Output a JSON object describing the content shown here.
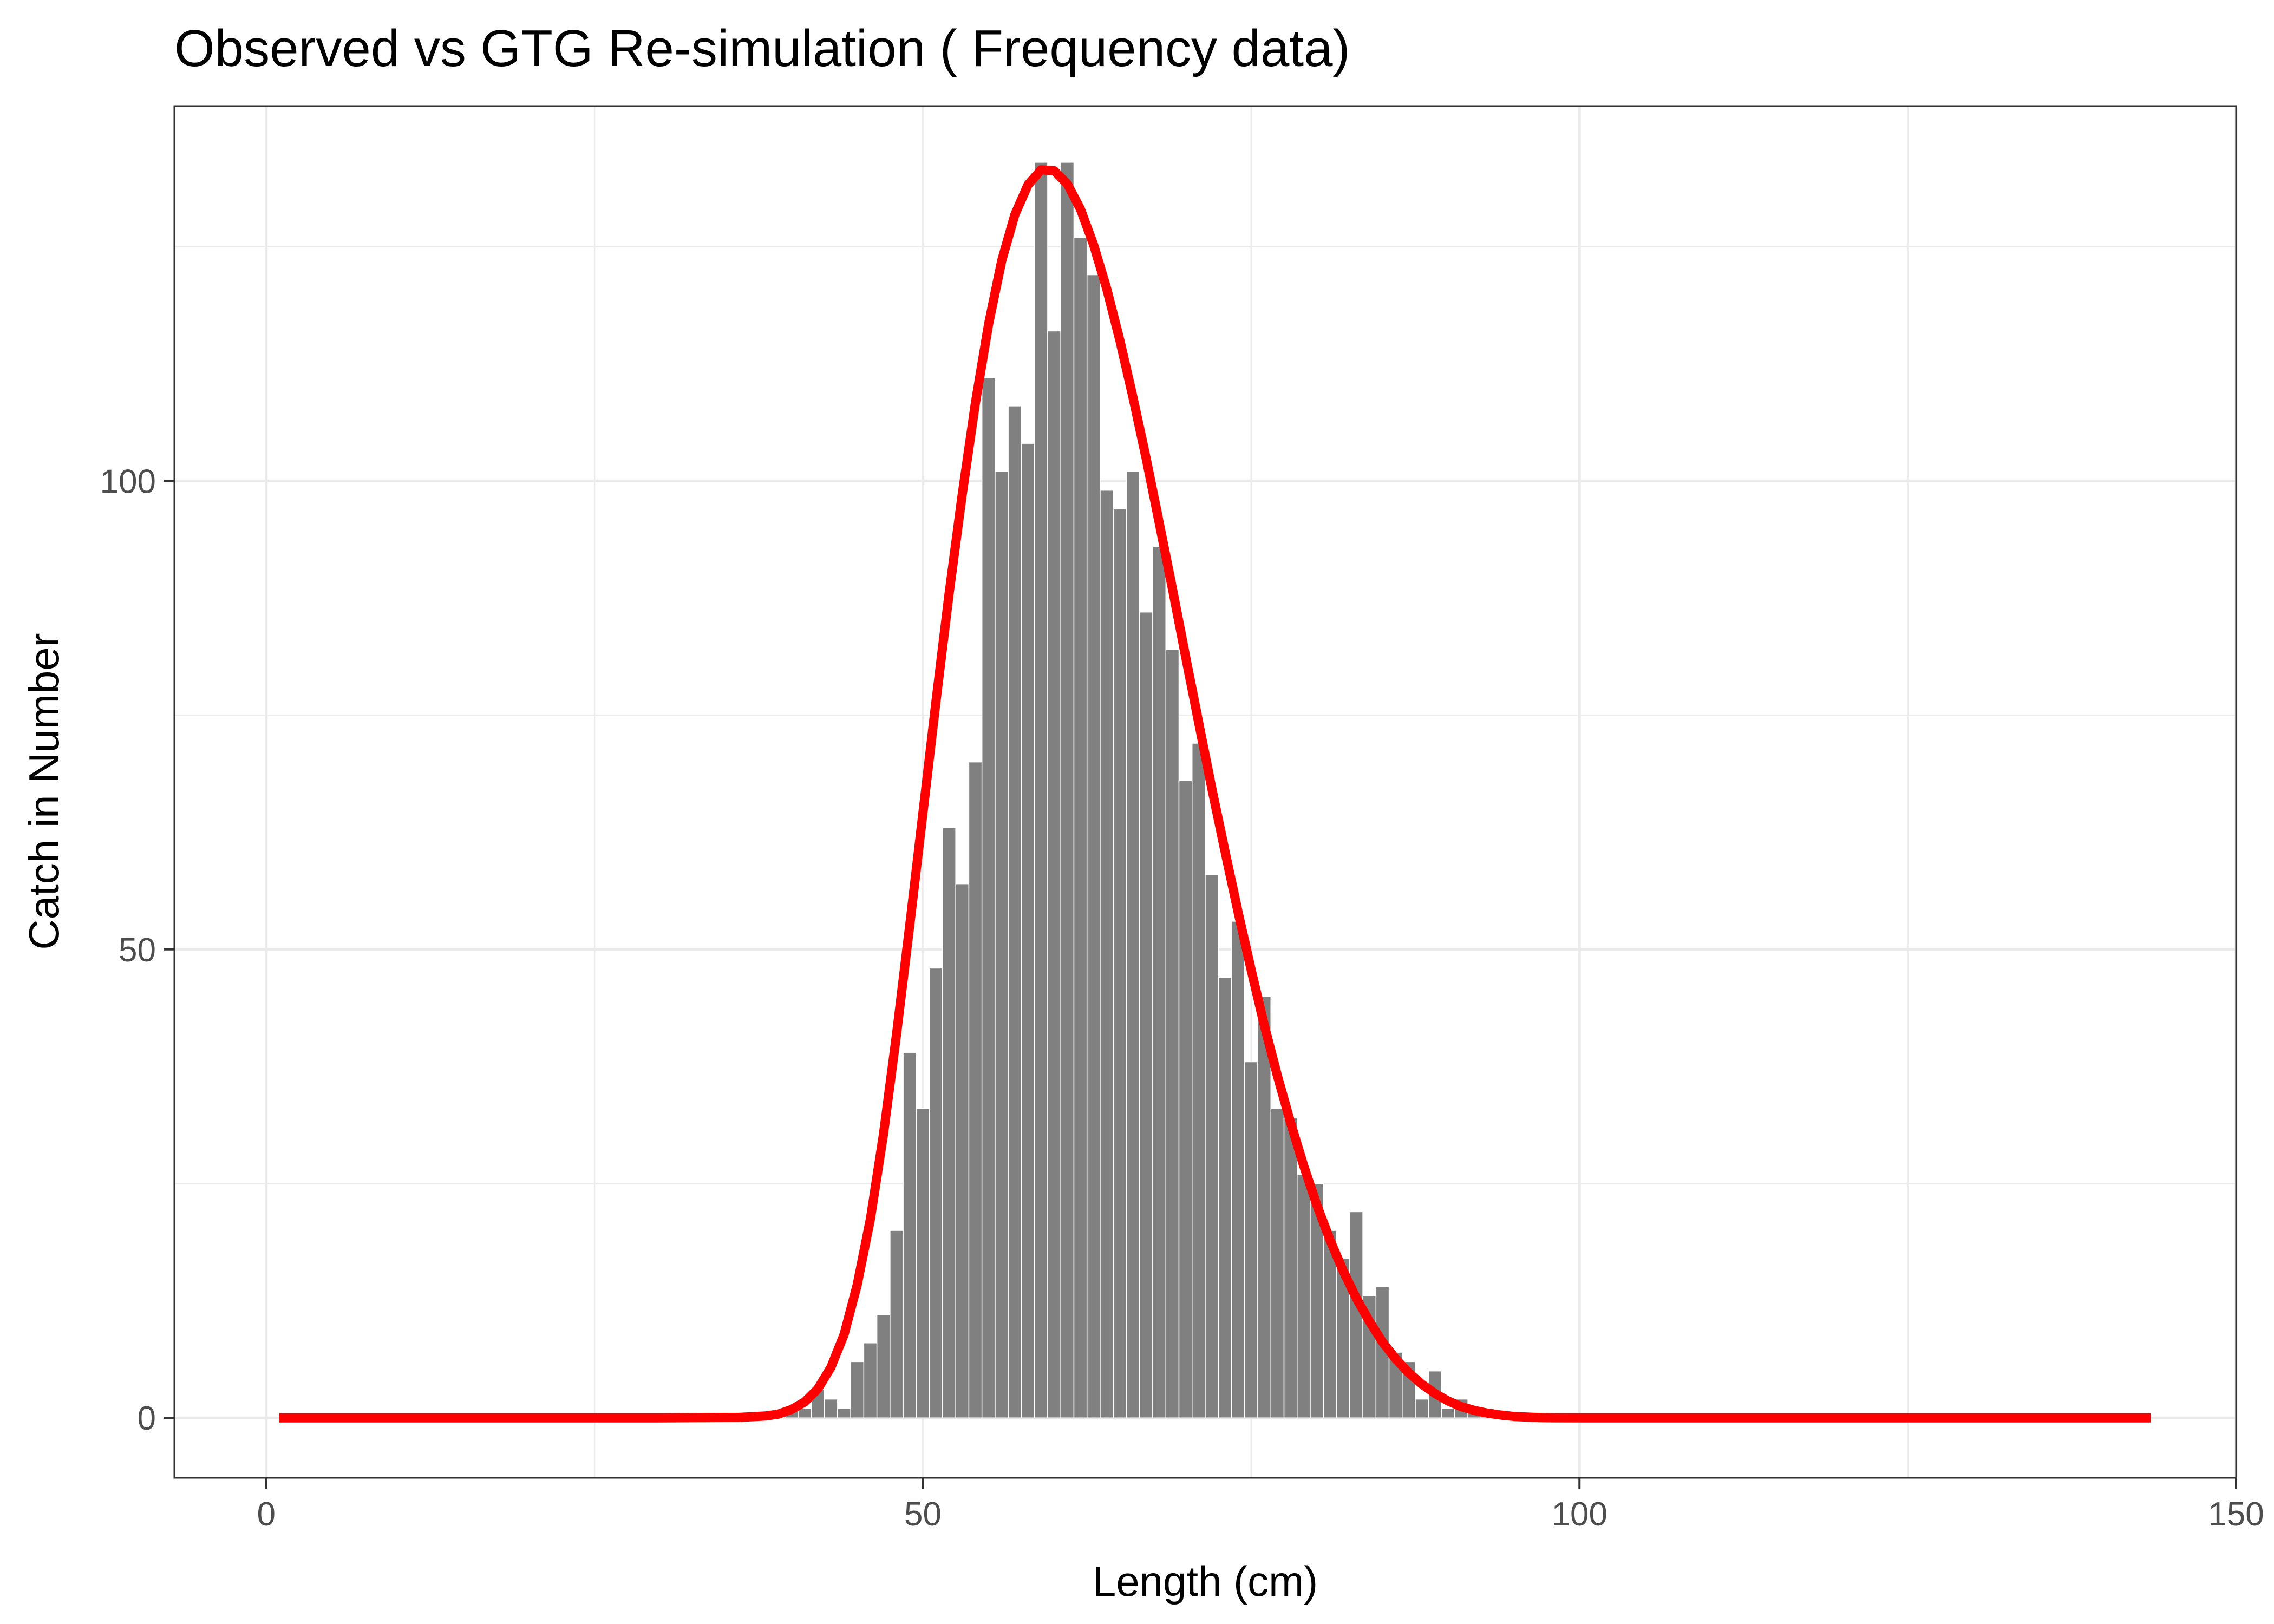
{
  "chart_data": {
    "type": "bar",
    "title": "Observed vs GTG Re-simulation ( Frequency data)",
    "xlabel": "Length (cm)",
    "ylabel": "Catch in Number",
    "xlim": [
      -7,
      150
    ],
    "ylim": [
      -6.4,
      140
    ],
    "x_ticks": [
      0,
      50,
      100,
      150
    ],
    "y_ticks": [
      0,
      50,
      100
    ],
    "grid": true,
    "legend": "none",
    "colors": {
      "bars": "#808080",
      "line": "#ff0000",
      "grid": "#ebebeb",
      "panel_border": "#333333"
    },
    "bar_width": 1,
    "series": [
      {
        "type": "bar",
        "x": [
          40,
          41,
          42,
          43,
          44,
          45,
          46,
          47,
          48,
          49,
          50,
          51,
          52,
          53,
          54,
          55,
          56,
          57,
          58,
          59,
          60,
          61,
          62,
          63,
          64,
          65,
          66,
          67,
          68,
          69,
          70,
          71,
          72,
          73,
          74,
          75,
          76,
          77,
          78,
          79,
          80,
          81,
          82,
          83,
          84,
          85,
          86,
          87,
          88,
          89,
          90,
          91,
          92,
          93
        ],
        "values": [
          1,
          1,
          3,
          2,
          1,
          6,
          8,
          11,
          20,
          39,
          33,
          48,
          63,
          57,
          70,
          111,
          101,
          108,
          104,
          134,
          116,
          134,
          126,
          122,
          99,
          97,
          101,
          86,
          93,
          82,
          68,
          72,
          58,
          47,
          53,
          38,
          45,
          33,
          32,
          26,
          25,
          20,
          17,
          22,
          13,
          14,
          7,
          6,
          2,
          5,
          1,
          2,
          1,
          1
        ]
      },
      {
        "type": "line",
        "x": [
          1,
          10,
          20,
          30,
          36,
          38,
          39,
          40,
          41,
          42,
          43,
          44,
          45,
          46,
          47,
          48,
          49,
          50,
          51,
          52,
          53,
          54,
          55,
          56,
          57,
          58,
          59,
          60,
          61,
          62,
          63,
          64,
          65,
          66,
          67,
          68,
          69,
          70,
          71,
          72,
          73,
          74,
          75,
          76,
          77,
          78,
          79,
          80,
          81,
          82,
          83,
          84,
          85,
          86,
          87,
          88,
          89,
          90,
          91,
          92,
          93,
          94,
          95,
          96,
          97,
          98,
          100,
          110,
          120,
          130,
          143.5
        ],
        "values": [
          0,
          0,
          0,
          0,
          0.05,
          0.2,
          0.4,
          0.9,
          1.7,
          3.1,
          5.4,
          8.9,
          14.2,
          21.2,
          30.3,
          41.0,
          52.6,
          64.5,
          76.5,
          88.0,
          98.6,
          108.3,
          116.7,
          123.5,
          128.4,
          131.6,
          133.2,
          133.1,
          131.7,
          129.0,
          125.2,
          120.5,
          115.0,
          108.9,
          102.4,
          95.5,
          88.5,
          81.3,
          74.2,
          67.2,
          60.5,
          54.0,
          47.8,
          41.9,
          36.5,
          31.5,
          26.9,
          22.7,
          19.0,
          15.7,
          12.8,
          10.3,
          8.1,
          6.3,
          4.8,
          3.6,
          2.6,
          1.8,
          1.2,
          0.8,
          0.5,
          0.3,
          0.15,
          0.08,
          0.03,
          0.01,
          0,
          0,
          0,
          0,
          0
        ]
      }
    ]
  }
}
